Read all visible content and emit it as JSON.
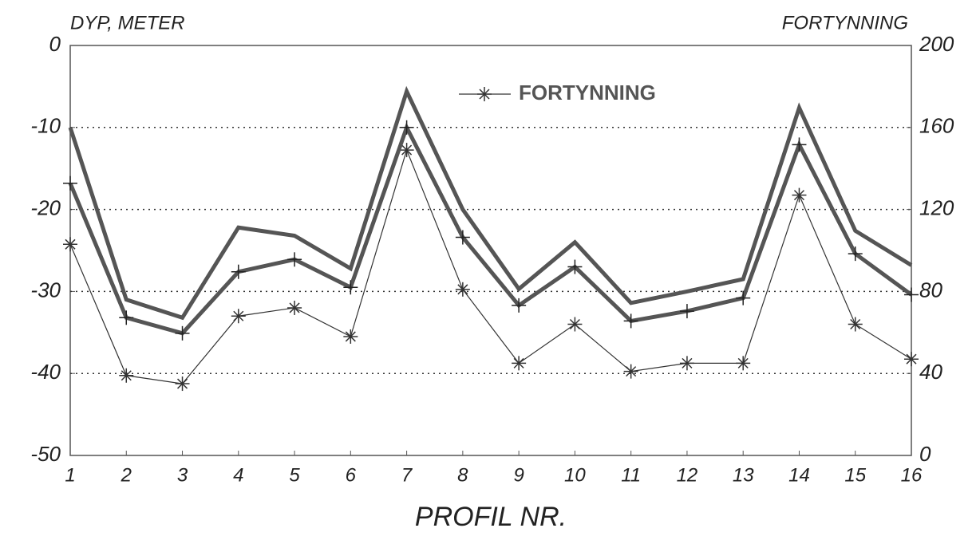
{
  "chart_data": {
    "type": "line",
    "ylabel": "DYP, METER",
    "y2label": "FORTYNNING",
    "xlabel": "PROFIL NR.",
    "categories": [
      "1",
      "2",
      "3",
      "4",
      "5",
      "6",
      "7",
      "8",
      "9",
      "10",
      "11",
      "12",
      "13",
      "14",
      "15",
      "16"
    ],
    "series": [
      {
        "name": "FORTYNNING",
        "color": "#333333",
        "marker": "asterisk",
        "axis": "y2",
        "values": [
          103,
          39,
          35,
          68,
          72,
          58,
          149,
          81,
          45,
          64,
          41,
          45,
          45,
          127,
          64,
          47
        ]
      },
      {
        "color": "#555555",
        "marker": "none",
        "values": [
          -10,
          -31,
          -33.2,
          -22.2,
          -23.2,
          -27.2,
          -5.6,
          -20,
          -29.7,
          -24,
          -31.4,
          -30,
          -28.5,
          -7.6,
          -22.6,
          -26.8
        ]
      },
      {
        "color": "#555555",
        "marker": "plus",
        "values": [
          -16.8,
          -33.2,
          -35.1,
          -27.6,
          -26.1,
          -29.5,
          -10,
          -23.4,
          -31.7,
          -27,
          -33.6,
          -32.4,
          -30.8,
          -12.1,
          -25.4,
          -30.4
        ]
      }
    ],
    "ylim": [
      -50,
      0
    ],
    "yticks": [
      0,
      -10,
      -20,
      -30,
      -40,
      -50
    ],
    "y2lim": [
      0,
      200
    ],
    "y2ticks": [
      0,
      40,
      80,
      120,
      160,
      200
    ],
    "grid": true,
    "legend": "top"
  }
}
